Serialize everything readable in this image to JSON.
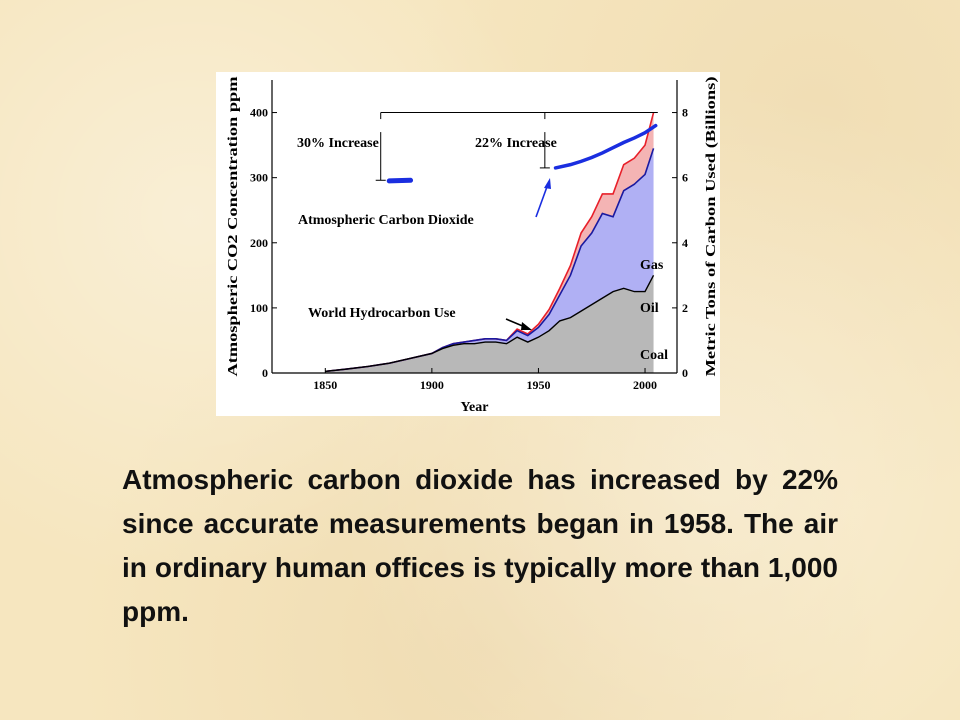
{
  "caption": "Atmospheric carbon dioxide has increased by 22% since accurate measurements began in 1958. The air in ordinary human offices is typically more than 1,000 ppm.",
  "chart_data": {
    "type": "area",
    "xlabel": "Year",
    "ylabel_left": "Atmospheric CO2 Concentration ppm",
    "ylabel_right": "Metric Tons of Carbon Used (Billions)",
    "xlim": [
      1825,
      2015
    ],
    "ylim_left": [
      0,
      450
    ],
    "ylim_right": [
      0,
      9
    ],
    "x_ticks": [
      1850,
      1900,
      1950,
      2000
    ],
    "y_left_ticks": [
      0,
      100,
      200,
      300,
      400
    ],
    "y_right_ticks": [
      0,
      2,
      4,
      6,
      8
    ],
    "colors": {
      "coal": "#b8b8b8",
      "oil": "#b0b0f4",
      "gas": "#f4b4b4",
      "co2": "#1a2ee0",
      "gas_line": "#e8202a",
      "oil_line": "#1a1aa0",
      "coal_line": "#000000"
    },
    "annotations": {
      "increase_30": "30% Increase",
      "increase_22": "22% Increase",
      "co2_label": "Atmospheric Carbon Dioxide",
      "hydro_label": "World Hydrocarbon Use",
      "gas": "Gas",
      "oil": "Oil",
      "coal": "Coal"
    },
    "co2_series": [
      {
        "name": "Atmospheric Carbon Dioxide",
        "x": [
          1880,
          1890
        ],
        "y": [
          295,
          296
        ]
      },
      {
        "name": "Atmospheric Carbon Dioxide",
        "x": [
          1958,
          1965,
          1970,
          1975,
          1980,
          1985,
          1990,
          1995,
          2000,
          2005
        ],
        "y": [
          315,
          320,
          325,
          331,
          338,
          346,
          354,
          361,
          369,
          380
        ]
      }
    ],
    "x": [
      1850,
      1860,
      1870,
      1880,
      1890,
      1900,
      1905,
      1910,
      1915,
      1920,
      1925,
      1930,
      1935,
      1940,
      1945,
      1950,
      1955,
      1960,
      1965,
      1970,
      1975,
      1980,
      1985,
      1990,
      1995,
      2000,
      2004
    ],
    "series": [
      {
        "name": "Coal",
        "values": [
          0.05,
          0.12,
          0.2,
          0.3,
          0.45,
          0.6,
          0.75,
          0.85,
          0.9,
          0.9,
          0.95,
          0.95,
          0.9,
          1.1,
          0.95,
          1.1,
          1.3,
          1.6,
          1.7,
          1.9,
          2.1,
          2.3,
          2.5,
          2.6,
          2.5,
          2.5,
          3.0
        ]
      },
      {
        "name": "Oil",
        "values": [
          0.05,
          0.12,
          0.2,
          0.3,
          0.45,
          0.6,
          0.78,
          0.9,
          0.95,
          1.0,
          1.05,
          1.05,
          1.0,
          1.3,
          1.15,
          1.4,
          1.8,
          2.4,
          3.0,
          3.9,
          4.3,
          4.9,
          4.8,
          5.6,
          5.8,
          6.1,
          6.9
        ]
      },
      {
        "name": "Gas",
        "values": [
          0.05,
          0.12,
          0.2,
          0.3,
          0.45,
          0.6,
          0.78,
          0.9,
          0.95,
          1.0,
          1.05,
          1.05,
          1.0,
          1.35,
          1.2,
          1.5,
          1.95,
          2.6,
          3.3,
          4.3,
          4.8,
          5.5,
          5.5,
          6.4,
          6.6,
          7.0,
          8.0
        ]
      }
    ]
  }
}
